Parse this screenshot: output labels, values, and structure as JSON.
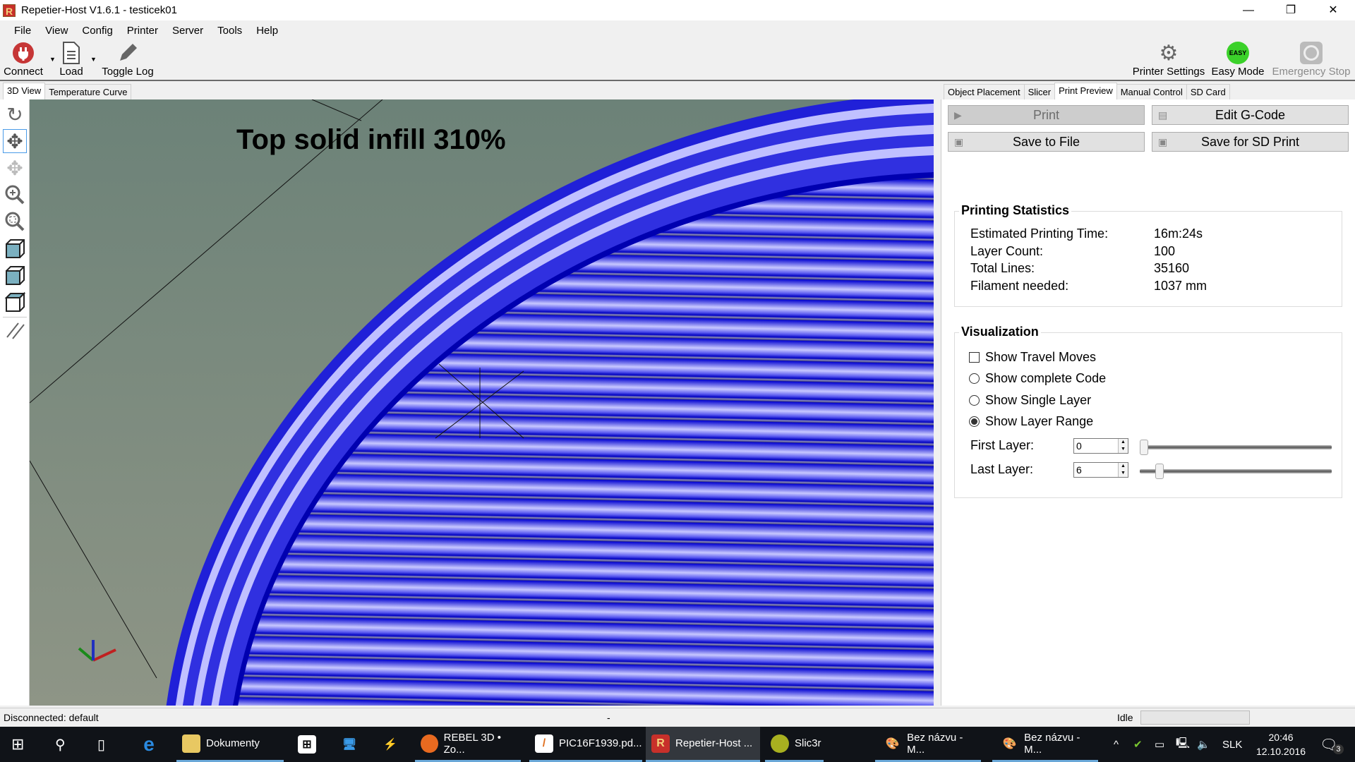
{
  "window": {
    "title": "Repetier-Host V1.6.1 - testicek01",
    "logo": "R",
    "minimize": "—",
    "maximize": "❐",
    "close": "✕"
  },
  "menu": [
    "File",
    "View",
    "Config",
    "Printer",
    "Server",
    "Tools",
    "Help"
  ],
  "toolbar": {
    "connect": "Connect",
    "load": "Load",
    "toggle_log": "Toggle Log",
    "printer_settings": "Printer Settings",
    "easy_mode": "Easy Mode",
    "easy_badge": "EASY",
    "emergency_stop": "Emergency Stop"
  },
  "left_tabs": [
    "3D View",
    "Temperature Curve"
  ],
  "viewport": {
    "overlay_text": "Top solid infill 310%",
    "stripe_color": "#2a2ae0",
    "background": "#76887e"
  },
  "right_tabs": [
    "Object Placement",
    "Slicer",
    "Print Preview",
    "Manual Control",
    "SD Card"
  ],
  "actions": {
    "print": "Print",
    "edit_gcode": "Edit G-Code",
    "save_file": "Save to File",
    "save_sd": "Save for SD Print"
  },
  "stats": {
    "title": "Printing Statistics",
    "rows": [
      {
        "label": "Estimated Printing Time:",
        "value": "16m:24s"
      },
      {
        "label": "Layer Count:",
        "value": "100"
      },
      {
        "label": "Total Lines:",
        "value": "35160"
      },
      {
        "label": "Filament needed:",
        "value": "1037 mm"
      }
    ]
  },
  "visualization": {
    "title": "Visualization",
    "show_travel": "Show Travel Moves",
    "show_complete": "Show complete Code",
    "show_single": "Show Single Layer",
    "show_range": "Show Layer Range",
    "selected": "Show Layer Range",
    "first_layer_label": "First Layer:",
    "first_layer": "0",
    "last_layer_label": "Last Layer:",
    "last_layer": "6",
    "layer_max": 100
  },
  "status": {
    "left": "Disconnected: default",
    "middle": "-",
    "right": "Idle"
  },
  "taskbar": {
    "items": [
      "Dokumenty",
      "REBEL 3D • Zo...",
      "PIC16F1939.pd...",
      "Repetier-Host ...",
      "Slic3r",
      "Bez názvu - M...",
      "Bez názvu - M..."
    ],
    "lang": "SLK",
    "time": "20:46",
    "date": "12.10.2016",
    "notifications": "3"
  }
}
